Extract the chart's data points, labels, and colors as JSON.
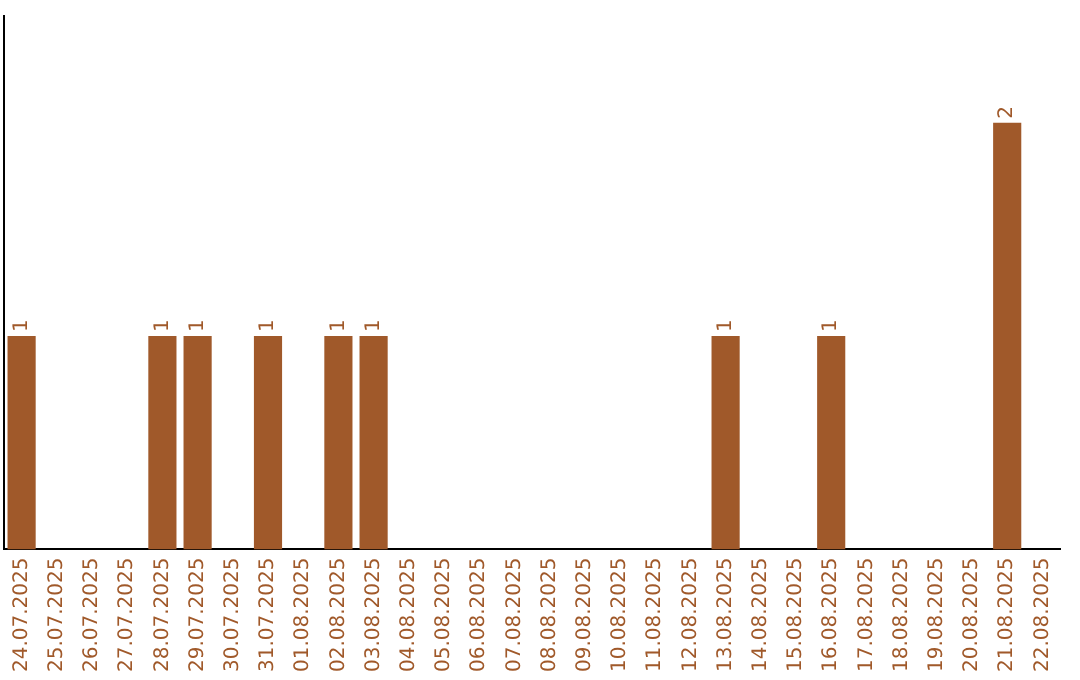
{
  "chart_data": {
    "type": "bar",
    "categories": [
      "24.07.2025",
      "25.07.2025",
      "26.07.2025",
      "27.07.2025",
      "28.07.2025",
      "29.07.2025",
      "30.07.2025",
      "31.07.2025",
      "01.08.2025",
      "02.08.2025",
      "03.08.2025",
      "04.08.2025",
      "05.08.2025",
      "06.08.2025",
      "07.08.2025",
      "08.08.2025",
      "09.08.2025",
      "10.08.2025",
      "11.08.2025",
      "12.08.2025",
      "13.08.2025",
      "14.08.2025",
      "15.08.2025",
      "16.08.2025",
      "17.08.2025",
      "18.08.2025",
      "19.08.2025",
      "20.08.2025",
      "21.08.2025",
      "22.08.2025"
    ],
    "values": [
      1,
      0,
      0,
      0,
      1,
      1,
      0,
      1,
      0,
      1,
      1,
      0,
      0,
      0,
      0,
      0,
      0,
      0,
      0,
      0,
      1,
      0,
      0,
      1,
      0,
      0,
      0,
      0,
      2,
      0
    ],
    "value_labels": [
      "1",
      null,
      null,
      null,
      "1",
      "1",
      null,
      "1",
      null,
      "1",
      "1",
      null,
      null,
      null,
      null,
      null,
      null,
      null,
      null,
      null,
      "1",
      null,
      null,
      "1",
      null,
      null,
      null,
      null,
      "2",
      null
    ],
    "color": "#a0592a",
    "grid": false,
    "legend": false,
    "tick_labels": "x"
  }
}
